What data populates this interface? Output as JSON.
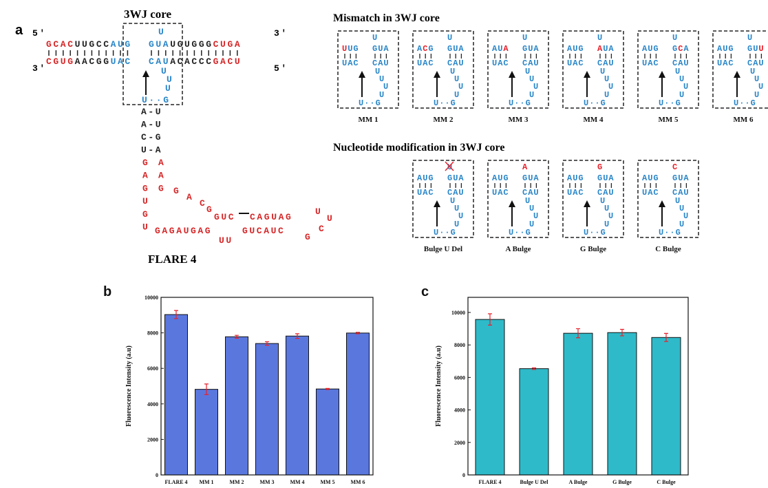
{
  "structure": {
    "panel_label": "a",
    "core_title": "3WJ core",
    "name": "FLARE 4",
    "primes": [
      "5′",
      "3′",
      "3′",
      "5′"
    ],
    "top_left": [
      {
        "text": "GCAC",
        "color": "#d62728"
      },
      {
        "text": "UUGCC",
        "color": "#222222"
      },
      {
        "text": "AUG",
        "color": "#2a86c8"
      }
    ],
    "top_right": [
      {
        "text": "GUA",
        "color": "#2a86c8"
      },
      {
        "text": "UGUGGG",
        "color": "#222222"
      },
      {
        "text": "CUGA",
        "color": "#d62728"
      }
    ],
    "bottom_left": [
      {
        "text": "CGUG",
        "color": "#d62728"
      },
      {
        "text": "AACGG",
        "color": "#222222"
      },
      {
        "text": "UAC",
        "color": "#2a86c8"
      }
    ],
    "bottom_right": [
      {
        "text": "CAU",
        "color": "#2a86c8"
      },
      {
        "text": "ACACCC",
        "color": "#222222"
      },
      {
        "text": "GACU",
        "color": "#d62728"
      }
    ],
    "core": {
      "color": "#2a86c8",
      "bulge": "U",
      "loop": [
        "U",
        "U",
        "U"
      ],
      "closing_pair": "U··G"
    },
    "stem": {
      "color": "#222222",
      "pairs": [
        "A-U",
        "A-U",
        "C-G",
        "U-A"
      ]
    },
    "tail": {
      "color": "#d62728",
      "left": [
        "G",
        "A",
        "G",
        "U",
        "G",
        "U"
      ],
      "right": [
        "A",
        "A",
        "G"
      ],
      "diagonal": [
        "G",
        "A",
        "C",
        "G"
      ],
      "upper_strand": [
        "GUC",
        "CAGUAG"
      ],
      "hairpin_loop": [
        "U",
        "U",
        "C",
        "G"
      ],
      "lower_strand": [
        "GAGAUGAG",
        "GUCAUC"
      ],
      "internal_loop": "UU"
    }
  },
  "mismatch": {
    "title": "Mismatch in 3WJ core",
    "variants": [
      {
        "label": "MM 1",
        "top_left": [
          {
            "text": "U",
            "color": "#e8202a"
          },
          {
            "text": "UG",
            "color": "#2a86c8"
          }
        ],
        "top_right": [
          {
            "text": "GUA",
            "color": "#2a86c8"
          }
        ],
        "bulge": {
          "text": "U",
          "color": "#2a86c8"
        },
        "bottom_left": "UAC",
        "bottom_right": "CAU",
        "loop": [
          "U",
          "U",
          "U",
          "U"
        ],
        "closing_pair": "U··G"
      },
      {
        "label": "MM 2",
        "top_left": [
          {
            "text": "A",
            "color": "#2a86c8"
          },
          {
            "text": "C",
            "color": "#e8202a"
          },
          {
            "text": "G",
            "color": "#2a86c8"
          }
        ],
        "top_right": [
          {
            "text": "GUA",
            "color": "#2a86c8"
          }
        ],
        "bulge": {
          "text": "U",
          "color": "#2a86c8"
        },
        "bottom_left": "UAC",
        "bottom_right": "CAU",
        "loop": [
          "U",
          "U",
          "U",
          "U"
        ],
        "closing_pair": "U··G"
      },
      {
        "label": "MM 3",
        "top_left": [
          {
            "text": "AU",
            "color": "#2a86c8"
          },
          {
            "text": "A",
            "color": "#e8202a"
          }
        ],
        "top_right": [
          {
            "text": "GUA",
            "color": "#2a86c8"
          }
        ],
        "bulge": {
          "text": "U",
          "color": "#2a86c8"
        },
        "bottom_left": "UAC",
        "bottom_right": "CAU",
        "loop": [
          "U",
          "U",
          "U",
          "U"
        ],
        "closing_pair": "U··G"
      },
      {
        "label": "MM 4",
        "top_left": [
          {
            "text": "AUG",
            "color": "#2a86c8"
          }
        ],
        "top_right": [
          {
            "text": "A",
            "color": "#e8202a"
          },
          {
            "text": "UA",
            "color": "#2a86c8"
          }
        ],
        "bulge": {
          "text": "U",
          "color": "#2a86c8"
        },
        "bottom_left": "UAC",
        "bottom_right": "CAU",
        "loop": [
          "U",
          "U",
          "U",
          "U"
        ],
        "closing_pair": "U··G"
      },
      {
        "label": "MM 5",
        "top_left": [
          {
            "text": "AUG",
            "color": "#2a86c8"
          }
        ],
        "top_right": [
          {
            "text": "G",
            "color": "#2a86c8"
          },
          {
            "text": "C",
            "color": "#e8202a"
          },
          {
            "text": "A",
            "color": "#2a86c8"
          }
        ],
        "bulge": {
          "text": "U",
          "color": "#2a86c8"
        },
        "bottom_left": "UAC",
        "bottom_right": "CAU",
        "loop": [
          "U",
          "U",
          "U",
          "U"
        ],
        "closing_pair": "U··G"
      },
      {
        "label": "MM 6",
        "top_left": [
          {
            "text": "AUG",
            "color": "#2a86c8"
          }
        ],
        "top_right": [
          {
            "text": "GU",
            "color": "#2a86c8"
          },
          {
            "text": "U",
            "color": "#e8202a"
          }
        ],
        "bulge": {
          "text": "U",
          "color": "#2a86c8"
        },
        "bottom_left": "UAC",
        "bottom_right": "CAU",
        "loop": [
          "U",
          "U",
          "U",
          "U"
        ],
        "closing_pair": "U··G"
      }
    ]
  },
  "modification": {
    "title": "Nucleotide modification in 3WJ core",
    "variants": [
      {
        "label": "Bulge U Del",
        "deleted": true,
        "top_left": [
          {
            "text": "AUG",
            "color": "#2a86c8"
          }
        ],
        "top_right": [
          {
            "text": "GUA",
            "color": "#2a86c8"
          }
        ],
        "bulge": {
          "text": "U",
          "color": "#2a86c8"
        },
        "bottom_left": "UAC",
        "bottom_right": "CAU",
        "loop": [
          "U",
          "U",
          "U",
          "U"
        ],
        "closing_pair": "U··G"
      },
      {
        "label": "A Bulge",
        "deleted": false,
        "top_left": [
          {
            "text": "AUG",
            "color": "#2a86c8"
          }
        ],
        "top_right": [
          {
            "text": "GUA",
            "color": "#2a86c8"
          }
        ],
        "bulge": {
          "text": "A",
          "color": "#e8202a"
        },
        "bottom_left": "UAC",
        "bottom_right": "CAU",
        "loop": [
          "U",
          "U",
          "U",
          "U"
        ],
        "closing_pair": "U··G"
      },
      {
        "label": "G Bulge",
        "deleted": false,
        "top_left": [
          {
            "text": "AUG",
            "color": "#2a86c8"
          }
        ],
        "top_right": [
          {
            "text": "GUA",
            "color": "#2a86c8"
          }
        ],
        "bulge": {
          "text": "G",
          "color": "#e8202a"
        },
        "bottom_left": "UAC",
        "bottom_right": "CAU",
        "loop": [
          "U",
          "U",
          "U",
          "U"
        ],
        "closing_pair": "U··G"
      },
      {
        "label": "C Bulge",
        "deleted": false,
        "top_left": [
          {
            "text": "AUG",
            "color": "#2a86c8"
          }
        ],
        "top_right": [
          {
            "text": "GUA",
            "color": "#2a86c8"
          }
        ],
        "bulge": {
          "text": "C",
          "color": "#e8202a"
        },
        "bottom_left": "UAC",
        "bottom_right": "CAU",
        "loop": [
          "U",
          "U",
          "U",
          "U"
        ],
        "closing_pair": "U··G"
      }
    ]
  },
  "chart_data": [
    {
      "type": "bar",
      "panel_label": "b",
      "y_label": "Fluorescence Intensity (a.u)",
      "categories": [
        "FLARE 4",
        "MM 1",
        "MM 2",
        "MM 3",
        "MM 4",
        "MM 5",
        "MM 6"
      ],
      "values": [
        9030,
        4820,
        7780,
        7400,
        7820,
        4840,
        7990
      ],
      "errors": [
        230,
        300,
        80,
        100,
        130,
        30,
        40
      ],
      "color": "#5a77de",
      "error_color": "#e8202a",
      "ylim": [
        0,
        10000
      ],
      "yticks": [
        0,
        2000,
        4000,
        6000,
        8000,
        10000
      ]
    },
    {
      "type": "bar",
      "panel_label": "c",
      "y_label": "Fluorescence Intensity (a.u)",
      "categories": [
        "FLARE 4",
        "Bulge U Del",
        "A Bulge",
        "G Bulge",
        "C Bulge"
      ],
      "values": [
        9570,
        6540,
        8720,
        8760,
        8460
      ],
      "errors": [
        350,
        50,
        280,
        200,
        250
      ],
      "color": "#2fbac9",
      "error_color": "#e8202a",
      "ylim": [
        0,
        10930
      ],
      "yticks": [
        0,
        2000,
        4000,
        6000,
        8000,
        10000
      ]
    }
  ]
}
